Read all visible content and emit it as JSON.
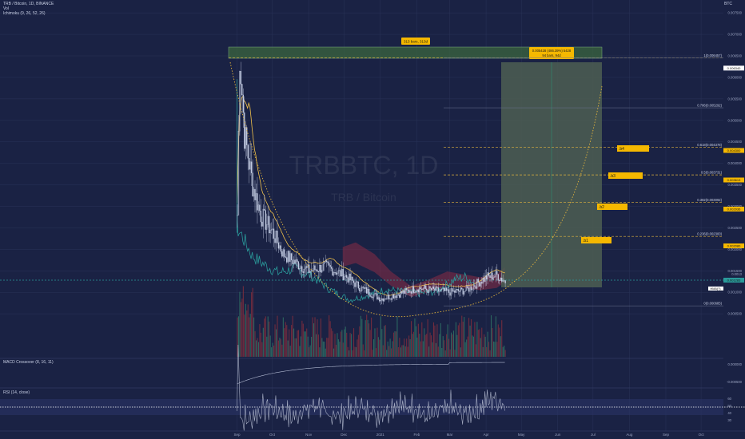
{
  "header": {
    "symbol_line": "TRB / Bitcoin, 1D, BINANCE",
    "vol_label": "Vol",
    "ichimoku_label": "Ichimoku (9, 26, 52, 26)",
    "currency": "BTC"
  },
  "watermark": {
    "ticker": "TRBBTC, 1D",
    "name": "TRB / Bitcoin"
  },
  "colors": {
    "background": "#1a2244",
    "grid": "#2a3358",
    "candle": "#c9d2e8",
    "cloud_bear": "#8a2b46",
    "cloud_bull": "#2f5a52",
    "conversion": "#f0c14b",
    "lagging": "#2a9a9a",
    "fib": "#e0b23c",
    "projection_box": "#4e5e52",
    "tag_bg": "#f5b800",
    "macd": "#b0b8d0",
    "rsi_line": "#a9b0c6"
  },
  "chart_data": {
    "type": "candlestick",
    "x_ticks": [
      "Sep",
      "Oct",
      "Nov",
      "Dec",
      "2021",
      "Feb",
      "Mar",
      "Apr",
      "May",
      "Jun",
      "Jul",
      "Aug",
      "Sep",
      "Oct"
    ],
    "y_ticks": [
      "0.007500",
      "0.007000",
      "0.006500",
      "0.006000",
      "0.005500",
      "0.005000",
      "0.004500",
      "0.004000",
      "0.003500",
      "0.003000",
      "0.002500",
      "0.002000",
      "0.001500",
      "0.001000",
      "0.000500",
      "-0.000500"
    ],
    "y_range": [
      -0.0005,
      0.0078
    ],
    "price_path": [
      [
        "2020-09-01",
        0.0028
      ],
      [
        "2020-09-03",
        0.0066
      ],
      [
        "2020-09-07",
        0.0047
      ],
      [
        "2020-09-14",
        0.0035
      ],
      [
        "2020-09-21",
        0.0028
      ],
      [
        "2020-10-01",
        0.0024
      ],
      [
        "2020-10-10",
        0.0019
      ],
      [
        "2020-10-20",
        0.0017
      ],
      [
        "2020-11-01",
        0.0015
      ],
      [
        "2020-11-15",
        0.0016
      ],
      [
        "2020-12-01",
        0.0014
      ],
      [
        "2020-12-15",
        0.0011
      ],
      [
        "2021-01-01",
        0.00085
      ],
      [
        "2021-01-15",
        0.00095
      ],
      [
        "2021-02-01",
        0.0011
      ],
      [
        "2021-02-15",
        0.00105
      ],
      [
        "2021-03-01",
        0.001
      ],
      [
        "2021-03-15",
        0.00105
      ],
      [
        "2021-04-01",
        0.00135
      ],
      [
        "2021-04-10",
        0.0014
      ],
      [
        "2021-04-17",
        0.00125
      ]
    ],
    "current_price": "0.001283",
    "current_price_upper": "0.0013",
    "high_price_tag": "0.006340",
    "hma_tag_label": "HMA(?)",
    "fib_levels": [
      {
        "label": "1(0.006457)",
        "value": 0.006457
      },
      {
        "label": "0.786(0.005292)",
        "value": 0.005292
      },
      {
        "label": "0.618(0.004378)",
        "value": 0.004378
      },
      {
        "label": "0.5(0.003731)",
        "value": 0.003731
      },
      {
        "label": "0.382(0.003092)",
        "value": 0.003092
      },
      {
        "label": "0.236(0.002300)",
        "value": 0.0023
      },
      {
        "label": "0(0.000685)",
        "value": 0.000685
      }
    ],
    "right_axis_tags": [
      "0.004300",
      "0.003613",
      "0.002936",
      "0.002080",
      "0.001283"
    ],
    "targets": [
      {
        "label": ".b1",
        "value": 0.0023
      },
      {
        "label": ".b2",
        "value": 0.0031
      },
      {
        "label": ".b3",
        "value": 0.0039
      },
      {
        "label": ".b4",
        "value": 0.00455
      }
    ],
    "range_label": "313 bars, 313d",
    "projection_label_1": "0.005428 (486.39%) 5428",
    "projection_label_2": "94 bars, 94d",
    "macd": {
      "label": "MACD Crossover (8, 16, 11)",
      "ticks": [
        "0.000000",
        "-0.000500"
      ]
    },
    "rsi": {
      "label": "RSI (14, close)",
      "ticks": [
        "60",
        "50",
        "40",
        "30"
      ]
    }
  }
}
